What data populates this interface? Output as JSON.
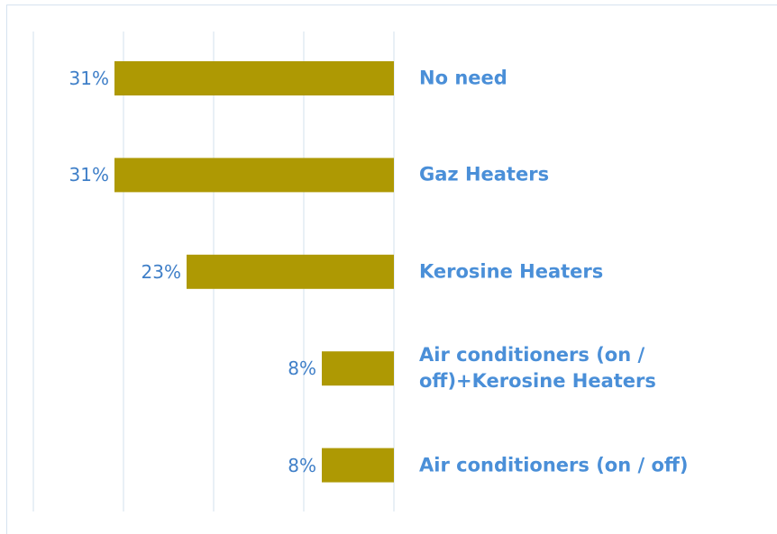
{
  "chart_data": {
    "type": "bar",
    "orientation": "horizontal",
    "direction": "leftward",
    "categories": [
      "No need",
      "Gaz Heaters",
      "Kerosine Heaters",
      "Air conditioners (on / off)+Kerosine Heaters",
      "Air conditioners (on / off)"
    ],
    "values": [
      31,
      31,
      23,
      8,
      8
    ],
    "value_labels": [
      "31%",
      "31%",
      "23%",
      "8%",
      "8%"
    ],
    "color": "#ae9903",
    "xlim": [
      0,
      40
    ],
    "xticks": [
      0,
      10,
      20,
      30,
      40
    ],
    "grid": true
  }
}
